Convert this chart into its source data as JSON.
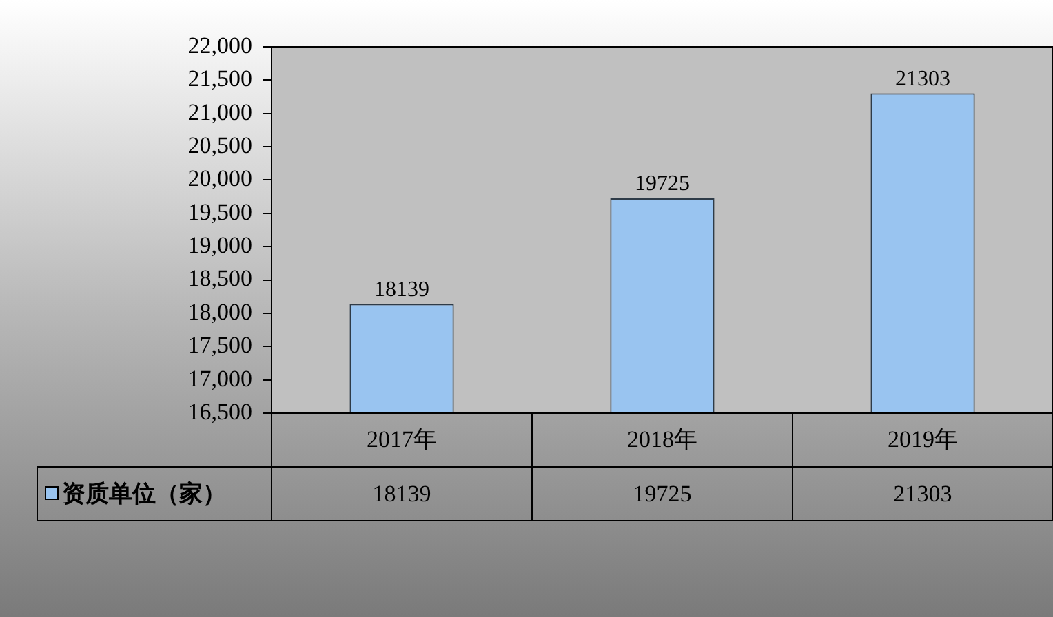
{
  "chart_data": {
    "type": "bar",
    "categories": [
      "2017年",
      "2018年",
      "2019年"
    ],
    "series": [
      {
        "name": "资质单位（家）",
        "color": "#99c4f0",
        "values": [
          18139,
          19725,
          21303
        ]
      }
    ],
    "annotations": [
      "18139",
      "19725",
      "21303"
    ],
    "ylim": [
      16500,
      22000
    ],
    "yticks": [
      {
        "value": 16500,
        "label": "16,500"
      },
      {
        "value": 17000,
        "label": "17,000"
      },
      {
        "value": 17500,
        "label": "17,500"
      },
      {
        "value": 18000,
        "label": "18,000"
      },
      {
        "value": 18500,
        "label": "18,500"
      },
      {
        "value": 19000,
        "label": "19,000"
      },
      {
        "value": 19500,
        "label": "19,500"
      },
      {
        "value": 20000,
        "label": "20,000"
      },
      {
        "value": 20500,
        "label": "20,500"
      },
      {
        "value": 21000,
        "label": "21,000"
      },
      {
        "value": 21500,
        "label": "21,500"
      },
      {
        "value": 22000,
        "label": "22,000"
      }
    ],
    "data_labels": true,
    "legend": "bottom",
    "grid": false
  }
}
